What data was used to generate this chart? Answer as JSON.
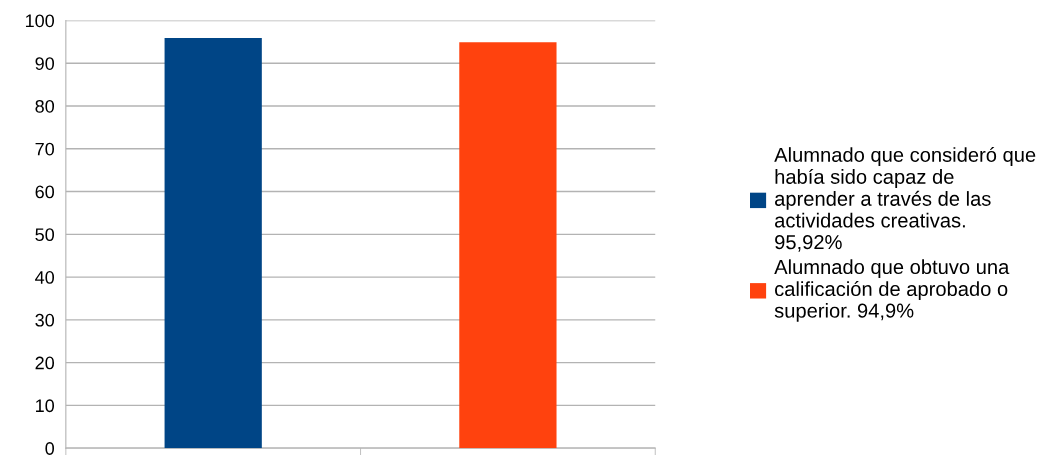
{
  "chart_data": {
    "type": "bar",
    "categories": [
      null,
      null
    ],
    "series": [
      {
        "name": "Alumnado que consideró que había sido capaz de aprender a través de las actividades creativas. 95,92%",
        "color": "#004586",
        "values": [
          95.92,
          null
        ]
      },
      {
        "name": "Alumnado que obtuvo una calificación de aprobado o superior. 94,9%",
        "color": "#ff420e",
        "values": [
          null,
          94.9
        ]
      }
    ],
    "ylim": [
      0,
      100
    ],
    "yticks": [
      0,
      10,
      20,
      30,
      40,
      50,
      60,
      70,
      80,
      90,
      100
    ],
    "grid": "y",
    "legend": "right"
  }
}
